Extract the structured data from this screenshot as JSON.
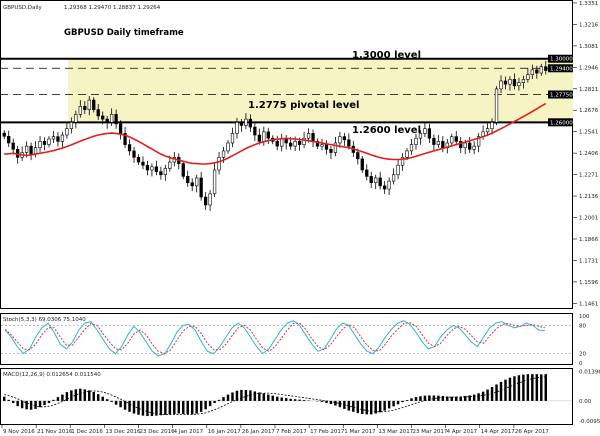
{
  "header": {
    "symbol_info": "GBPUSD,Daily",
    "ohlc": "1.29368 1.29470 1.28837 1.29264"
  },
  "chart_data": [
    {
      "type": "candlestick",
      "title": "GBPUSD Daily timeframe",
      "ylim": [
        1.1438,
        1.3357
      ],
      "y_ticks": [
        1.3351,
        1.3216,
        1.3081,
        1.2946,
        1.2811,
        1.2676,
        1.2541,
        1.2406,
        1.2271,
        1.2136,
        1.2001,
        1.1866,
        1.1731,
        1.1596,
        1.1461
      ],
      "x_tick_labels": [
        "9 Nov 2016",
        "21 Nov 2016",
        "1 Dec 2016",
        "13 Dec 2016",
        "23 Dec 2016",
        "4 Jan 2017",
        "16 Jan 2017",
        "26 Jan 2017",
        "7 Feb 2017",
        "17 Feb 2017",
        "1 Mar 2017",
        "13 Mar 2017",
        "23 Mar 2017",
        "4 Apr 2017",
        "14 Apr 2017",
        "26 Apr 2017"
      ],
      "close": [
        1.2512,
        1.247,
        1.243,
        1.238,
        1.241,
        1.245,
        1.24,
        1.244,
        1.248,
        1.246,
        1.2495,
        1.251,
        1.248,
        1.252,
        1.256,
        1.26,
        1.265,
        1.27,
        1.268,
        1.274,
        1.268,
        1.264,
        1.262,
        1.26,
        1.265,
        1.259,
        1.253,
        1.246,
        1.242,
        1.238,
        1.235,
        1.233,
        1.23,
        1.232,
        1.229,
        1.227,
        1.231,
        1.235,
        1.238,
        1.234,
        1.226,
        1.222,
        1.22,
        1.225,
        1.213,
        1.208,
        1.215,
        1.23,
        1.238,
        1.242,
        1.247,
        1.253,
        1.26,
        1.258,
        1.262,
        1.257,
        1.252,
        1.248,
        1.254,
        1.25,
        1.248,
        1.245,
        1.25,
        1.247,
        1.245,
        1.248,
        1.246,
        1.25,
        1.253,
        1.248,
        1.245,
        1.246,
        1.243,
        1.241,
        1.247,
        1.251,
        1.249,
        1.245,
        1.241,
        1.237,
        1.23,
        1.226,
        1.222,
        1.225,
        1.22,
        1.218,
        1.223,
        1.227,
        1.233,
        1.238,
        1.242,
        1.246,
        1.25,
        1.253,
        1.256,
        1.25,
        1.246,
        1.248,
        1.244,
        1.247,
        1.251,
        1.248,
        1.244,
        1.247,
        1.243,
        1.245,
        1.251,
        1.254,
        1.256,
        1.26,
        1.281,
        1.286,
        1.284,
        1.287,
        1.283,
        1.285,
        1.287,
        1.29,
        1.293,
        1.291,
        1.295,
        1.2926
      ],
      "ma_series": [
        1.24,
        1.2402,
        1.2405,
        1.24,
        1.2395,
        1.2392,
        1.2395,
        1.24,
        1.2405,
        1.241,
        1.2415,
        1.2422,
        1.243,
        1.2438,
        1.2448,
        1.2458,
        1.247,
        1.2482,
        1.2492,
        1.2502,
        1.2512,
        1.252,
        1.2525,
        1.253,
        1.2532,
        1.253,
        1.2525,
        1.2518,
        1.2508,
        1.2495,
        1.248,
        1.2464,
        1.2448,
        1.2432,
        1.2415,
        1.24,
        1.2388,
        1.2378,
        1.237,
        1.2362,
        1.2355,
        1.2348,
        1.2342,
        1.234,
        1.2338,
        1.2338,
        1.234,
        1.2345,
        1.2352,
        1.2362,
        1.2375,
        1.239,
        1.2405,
        1.242,
        1.2435,
        1.2448,
        1.246,
        1.247,
        1.2478,
        1.2485,
        1.249,
        1.2494,
        1.2497,
        1.2498,
        1.2497,
        1.2495,
        1.2492,
        1.2488,
        1.2484,
        1.248,
        1.2475,
        1.247,
        1.2465,
        1.246,
        1.2455,
        1.245,
        1.2445,
        1.244,
        1.2432,
        1.2424,
        1.2415,
        1.2405,
        1.2395,
        1.2386,
        1.2378,
        1.2372,
        1.2368,
        1.2366,
        1.2366,
        1.2368,
        1.2372,
        1.2378,
        1.2386,
        1.2395,
        1.2404,
        1.2412,
        1.242,
        1.2428,
        1.2436,
        1.2444,
        1.2452,
        1.246,
        1.2468,
        1.2476,
        1.2484,
        1.2492,
        1.25,
        1.251,
        1.252,
        1.2532,
        1.2546,
        1.256,
        1.2575,
        1.259,
        1.2605,
        1.262,
        1.2636,
        1.2652,
        1.2668,
        1.2685,
        1.2702,
        1.2718
      ],
      "levels": [
        {
          "value": 1.3,
          "label": "1.30000",
          "style": "thick"
        },
        {
          "value": 1.294,
          "label": "1.29400",
          "style": "dashed"
        },
        {
          "value": 1.2775,
          "label": "1.27750",
          "style": "dashed"
        },
        {
          "value": 1.26,
          "label": "1.26000",
          "style": "thick"
        }
      ],
      "annotations": [
        "1.3000 level",
        "1.2775 pivotal level",
        "1.2600 level"
      ]
    },
    {
      "type": "line",
      "header": "Stoch(5,3,3) 69.0306 75.1040",
      "ylim": [
        0,
        100
      ],
      "y_ticks": [
        100,
        80,
        20,
        0
      ],
      "levels": [
        80,
        20
      ],
      "series": [
        {
          "name": "",
          "color": "#29b6d8",
          "values": [
            70,
            55,
            35,
            20,
            30,
            55,
            75,
            85,
            65,
            40,
            30,
            45,
            70,
            85,
            88,
            70,
            50,
            30,
            20,
            35,
            60,
            78,
            65,
            45,
            25,
            15,
            20,
            40,
            65,
            80,
            82,
            70,
            45,
            25,
            20,
            35,
            55,
            75,
            85,
            75,
            55,
            35,
            20,
            30,
            50,
            70,
            85,
            90,
            80,
            60,
            40,
            25,
            30,
            50,
            72,
            85,
            80,
            60,
            40,
            25,
            20,
            35,
            55,
            72,
            85,
            90,
            82,
            65,
            45,
            30,
            35,
            55,
            70,
            80,
            75,
            60,
            45,
            35,
            55,
            75,
            85,
            88,
            80,
            75,
            78,
            85,
            80,
            70,
            69
          ]
        },
        {
          "name": "",
          "color": "#e03030",
          "values": [
            72,
            60,
            45,
            30,
            28,
            40,
            60,
            75,
            75,
            55,
            38,
            38,
            55,
            72,
            84,
            80,
            62,
            45,
            30,
            28,
            42,
            62,
            70,
            60,
            40,
            25,
            20,
            28,
            48,
            68,
            78,
            78,
            62,
            42,
            28,
            28,
            40,
            58,
            75,
            80,
            70,
            50,
            32,
            25,
            35,
            52,
            70,
            84,
            85,
            72,
            52,
            35,
            28,
            38,
            55,
            72,
            82,
            75,
            55,
            38,
            26,
            26,
            40,
            58,
            72,
            84,
            86,
            78,
            60,
            42,
            35,
            42,
            58,
            72,
            78,
            72,
            58,
            45,
            42,
            58,
            72,
            82,
            84,
            80,
            78,
            80,
            82,
            78,
            75
          ]
        }
      ]
    },
    {
      "type": "bar",
      "header": "MACD(12,26,9) 0.012654 0.011540",
      "ylim": [
        -0.0105,
        0.0142
      ],
      "y_ticks": [
        0.013965,
        0.0,
        -0.009551
      ],
      "series": [
        {
          "name": "",
          "values": [
            0.002,
            0.0005,
            -0.001,
            -0.0025,
            -0.0035,
            -0.004,
            -0.0042,
            -0.0038,
            -0.003,
            -0.002,
            -0.001,
            0.0005,
            0.0018,
            0.003,
            0.0042,
            0.005,
            0.0055,
            0.0058,
            0.0055,
            0.005,
            0.0042,
            0.0032,
            0.002,
            0.0008,
            -0.0005,
            -0.0018,
            -0.003,
            -0.0042,
            -0.0052,
            -0.006,
            -0.0066,
            -0.007,
            -0.0072,
            -0.0072,
            -0.007,
            -0.0068,
            -0.0066,
            -0.0064,
            -0.0062,
            -0.006,
            -0.0062,
            -0.0064,
            -0.0064,
            -0.006,
            -0.0052,
            -0.004,
            -0.0025,
            -0.001,
            0.0005,
            0.0018,
            0.003,
            0.004,
            0.0048,
            0.0052,
            0.0052,
            0.005,
            0.0045,
            0.004,
            0.0035,
            0.003,
            0.0025,
            0.002,
            0.0016,
            0.0013,
            0.001,
            0.0008,
            0.0006,
            0.0004,
            0.0002,
            0.0,
            -0.0002,
            -0.0005,
            -0.001,
            -0.0015,
            -0.0022,
            -0.003,
            -0.0038,
            -0.0046,
            -0.0052,
            -0.0058,
            -0.0062,
            -0.0064,
            -0.0064,
            -0.006,
            -0.0054,
            -0.0046,
            -0.0036,
            -0.0026,
            -0.0016,
            -0.0006,
            0.0004,
            0.0012,
            0.0018,
            0.0022,
            0.0025,
            0.0026,
            0.0026,
            0.0025,
            0.0023,
            0.0021,
            0.002,
            0.002,
            0.0021,
            0.0023,
            0.0026,
            0.003,
            0.0036,
            0.0044,
            0.0054,
            0.0066,
            0.0078,
            0.009,
            0.0101,
            0.011,
            0.0117,
            0.0122,
            0.0125,
            0.0127,
            0.0127,
            0.0127,
            0.0126,
            0.0127
          ]
        },
        {
          "name": "",
          "values": [
            0.003,
            0.0025,
            0.0018,
            0.001,
            0.0,
            -0.001,
            -0.0018,
            -0.0025,
            -0.0028,
            -0.0028,
            -0.0025,
            -0.002,
            -0.0012,
            -0.0003,
            0.0008,
            0.0018,
            0.0028,
            0.0036,
            0.0042,
            0.0046,
            0.0047,
            0.0046,
            0.0042,
            0.0036,
            0.0028,
            0.0018,
            0.0008,
            -0.0003,
            -0.0014,
            -0.0025,
            -0.0035,
            -0.0044,
            -0.0051,
            -0.0057,
            -0.0061,
            -0.0064,
            -0.0065,
            -0.0065,
            -0.0065,
            -0.0064,
            -0.0064,
            -0.0064,
            -0.0064,
            -0.0063,
            -0.0061,
            -0.0057,
            -0.005,
            -0.0042,
            -0.0033,
            -0.0023,
            -0.0013,
            -0.0003,
            0.0006,
            0.0014,
            0.0022,
            0.0028,
            0.0033,
            0.0036,
            0.0037,
            0.0037,
            0.0035,
            0.0033,
            0.003,
            0.0027,
            0.0024,
            0.0021,
            0.0018,
            0.0015,
            0.0012,
            0.0009,
            0.0006,
            0.0003,
            0.0,
            -0.0004,
            -0.0008,
            -0.0013,
            -0.0018,
            -0.0024,
            -0.003,
            -0.0036,
            -0.0041,
            -0.0046,
            -0.005,
            -0.0052,
            -0.0052,
            -0.0051,
            -0.0048,
            -0.0044,
            -0.0038,
            -0.0032,
            -0.0025,
            -0.0018,
            -0.0011,
            -0.0004,
            0.0002,
            0.0007,
            0.0011,
            0.0014,
            0.0016,
            0.0017,
            0.0018,
            0.0018,
            0.0019,
            0.0019,
            0.002,
            0.0021,
            0.0023,
            0.0026,
            0.003,
            0.0035,
            0.0042,
            0.005,
            0.0059,
            0.0068,
            0.0077,
            0.0085,
            0.0093,
            0.01,
            0.0106,
            0.011,
            0.0113,
            0.0115
          ]
        }
      ]
    }
  ],
  "colors": {
    "zone_fill": "#f6f3c4",
    "ma": "#e02020",
    "candle_bull": "#ffffff",
    "candle_bear": "#000000",
    "label_bg": "#000000",
    "label_fg": "#ffffff"
  }
}
